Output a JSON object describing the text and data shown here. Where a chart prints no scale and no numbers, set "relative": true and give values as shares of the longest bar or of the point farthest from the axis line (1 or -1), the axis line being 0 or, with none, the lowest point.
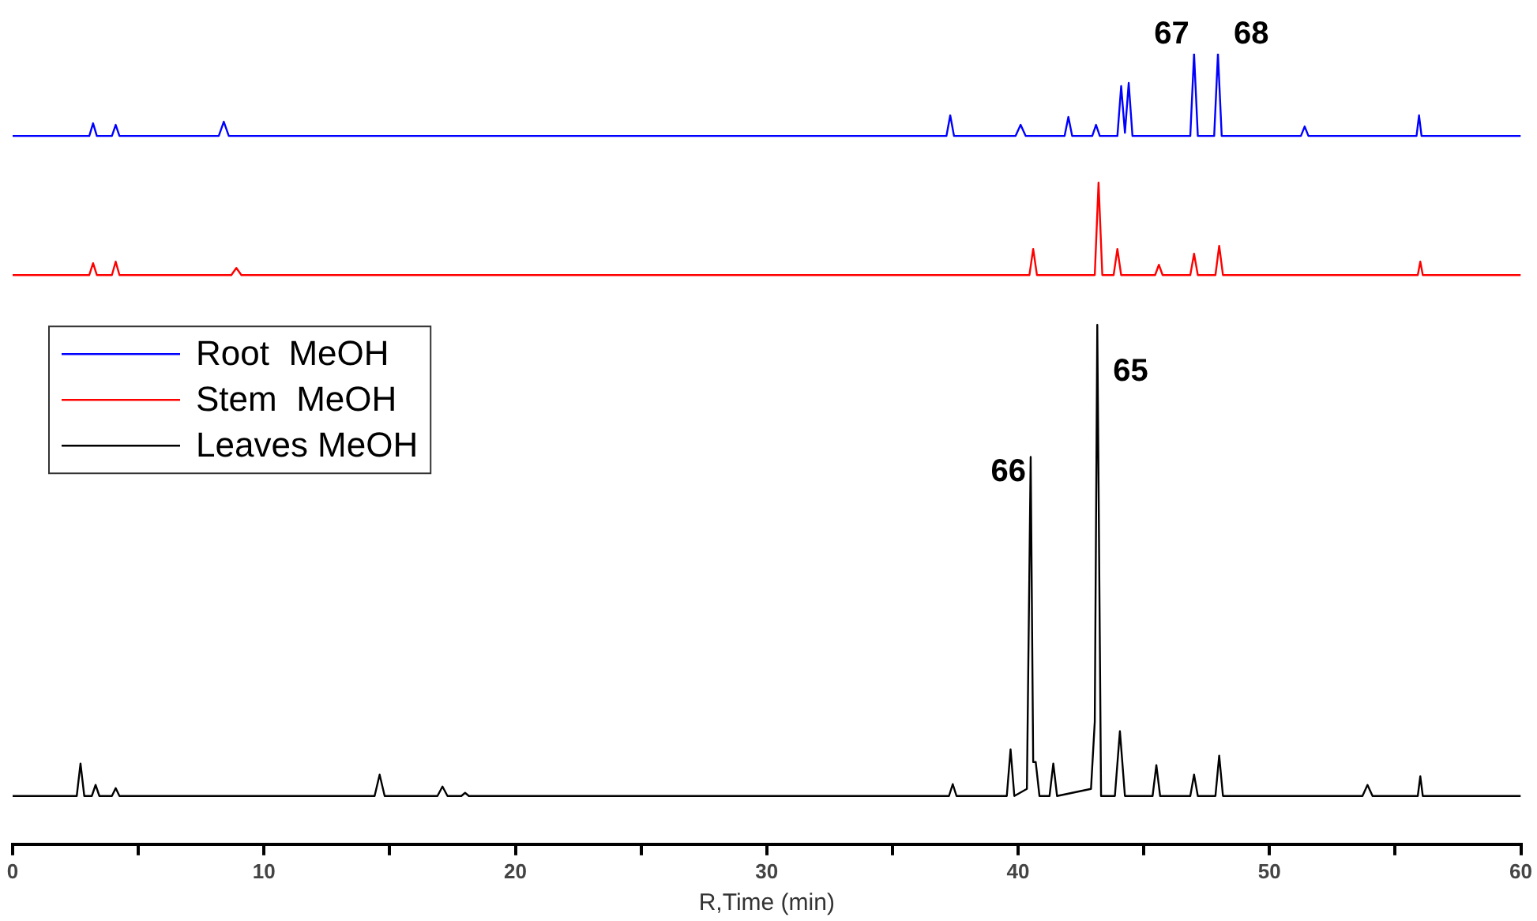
{
  "chart_data": {
    "type": "line",
    "relative": true,
    "xlabel": "R,Time (min)",
    "xlim": [
      0,
      60
    ],
    "xticks": [
      0,
      {
        "value": 5,
        "label": null
      },
      10,
      {
        "value": 15,
        "label": null
      },
      20,
      {
        "value": 25,
        "label": null
      },
      30,
      {
        "value": 35,
        "label": null
      },
      40,
      {
        "value": 45,
        "label": null
      },
      50,
      {
        "value": 55,
        "label": null
      },
      60
    ],
    "legend": "top left",
    "marker": "none",
    "series": [
      {
        "name": "Root  MeOH",
        "color": "#0000ff",
        "x": [
          0,
          3.05,
          3.2,
          3.35,
          3.95,
          4.1,
          4.25,
          8.2,
          8.4,
          8.6,
          37.15,
          37.3,
          37.45,
          39.9,
          40.1,
          40.3,
          41.85,
          42.0,
          42.15,
          42.95,
          43.1,
          43.25,
          43.95,
          44.1,
          44.25,
          44.4,
          44.55,
          46.85,
          47.0,
          47.15,
          47.8,
          47.95,
          48.1,
          51.25,
          51.4,
          51.55,
          55.85,
          55.95,
          56.05,
          60
        ],
        "values": [
          0.896,
          0.896,
          0.912,
          0.896,
          0.896,
          0.91,
          0.896,
          0.896,
          0.914,
          0.896,
          0.896,
          0.922,
          0.896,
          0.896,
          0.91,
          0.896,
          0.896,
          0.92,
          0.896,
          0.896,
          0.91,
          0.896,
          0.896,
          0.959,
          0.9,
          0.963,
          0.896,
          0.896,
          1,
          0.896,
          0.896,
          1,
          0.896,
          0.896,
          0.908,
          0.896,
          0.896,
          0.922,
          0.896,
          0.896
        ]
      },
      {
        "name": "Stem  MeOH",
        "color": "#ff0000",
        "x": [
          0,
          3.05,
          3.2,
          3.35,
          3.95,
          4.1,
          4.25,
          8.7,
          8.9,
          9.1,
          40.45,
          40.6,
          40.75,
          43.05,
          43.2,
          43.35,
          43.8,
          43.95,
          44.1,
          45.45,
          45.6,
          45.75,
          46.85,
          47.0,
          47.15,
          47.85,
          48.0,
          48.15,
          55.9,
          56.0,
          56.1,
          60
        ],
        "values": [
          0.72,
          0.72,
          0.735,
          0.72,
          0.72,
          0.737,
          0.72,
          0.72,
          0.729,
          0.72,
          0.72,
          0.753,
          0.72,
          0.72,
          0.837,
          0.72,
          0.72,
          0.753,
          0.72,
          0.72,
          0.733,
          0.72,
          0.72,
          0.747,
          0.72,
          0.72,
          0.757,
          0.72,
          0.72,
          0.737,
          0.72,
          0.72
        ]
      },
      {
        "name": "Leaves MeOH",
        "color": "#000000",
        "x": [
          0,
          2.55,
          2.7,
          2.85,
          3.15,
          3.3,
          3.45,
          3.95,
          4.1,
          4.25,
          14.4,
          14.6,
          14.8,
          16.9,
          17.1,
          17.3,
          17.85,
          18.0,
          18.15,
          37.25,
          37.4,
          37.55,
          39.55,
          39.7,
          39.85,
          40.35,
          40.5,
          40.6,
          40.7,
          40.85,
          41.25,
          41.4,
          41.55,
          42.9,
          43.05,
          43.15,
          43.3,
          43.85,
          44.05,
          44.25,
          45.35,
          45.5,
          45.65,
          46.85,
          47.0,
          47.15,
          47.85,
          48.0,
          48.15,
          53.7,
          53.9,
          54.1,
          55.9,
          56.0,
          56.1,
          60
        ],
        "values": [
          0.061,
          0.061,
          0.102,
          0.061,
          0.061,
          0.075,
          0.061,
          0.061,
          0.071,
          0.061,
          0.061,
          0.088,
          0.061,
          0.061,
          0.073,
          0.061,
          0.061,
          0.065,
          0.061,
          0.061,
          0.076,
          0.061,
          0.061,
          0.12,
          0.061,
          0.07,
          0.49,
          0.104,
          0.104,
          0.061,
          0.061,
          0.102,
          0.061,
          0.07,
          0.155,
          0.657,
          0.061,
          0.061,
          0.143,
          0.061,
          0.061,
          0.1,
          0.061,
          0.061,
          0.088,
          0.061,
          0.061,
          0.112,
          0.061,
          0.061,
          0.075,
          0.061,
          0.061,
          0.086,
          0.061,
          0.061
        ]
      }
    ],
    "annotations": [
      {
        "text": "67",
        "x": 47.0,
        "y": 1
      },
      {
        "text": "68",
        "x": 47.95,
        "y": 1
      },
      {
        "text": "66",
        "x": 40.5,
        "y": 0.49
      },
      {
        "text": "65",
        "x": 43.15,
        "y": 0.657
      }
    ]
  }
}
